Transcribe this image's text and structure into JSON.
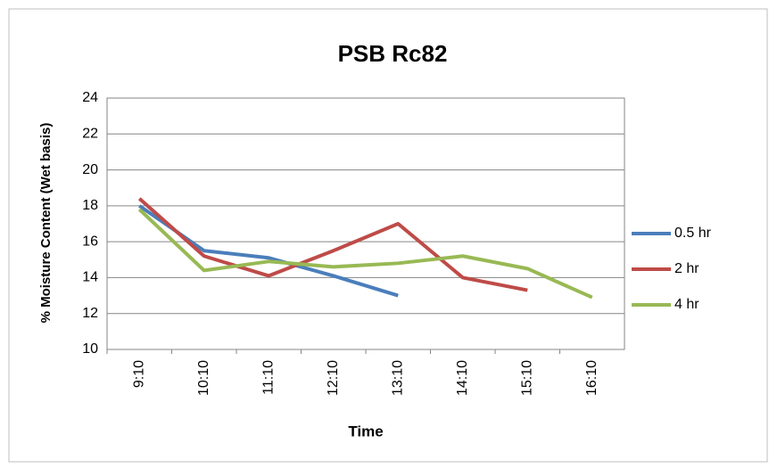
{
  "chart_data": {
    "type": "line",
    "title": "PSB Rc82",
    "y_label": "% Moisture Content (Wet basis)",
    "x_label": "Time",
    "categories": [
      "9:10",
      "10:10",
      "11:10",
      "12:10",
      "13:10",
      "14:10",
      "15:10",
      "16:10"
    ],
    "series": [
      {
        "name": "0.5 hr",
        "color": "#4a7ebb",
        "values": [
          18.0,
          15.5,
          15.1,
          14.1,
          13.0,
          null,
          null,
          null
        ]
      },
      {
        "name": "2 hr",
        "color": "#be4b48",
        "values": [
          18.4,
          15.2,
          14.1,
          15.5,
          17.0,
          14.0,
          13.3,
          null
        ]
      },
      {
        "name": "4 hr",
        "color": "#98b954",
        "values": [
          17.8,
          14.4,
          14.9,
          14.6,
          14.8,
          15.2,
          14.5,
          12.9
        ]
      }
    ],
    "ylim": [
      10,
      24
    ],
    "yticks": [
      10,
      12,
      14,
      16,
      18,
      20,
      22,
      24
    ],
    "grid": true,
    "legend": "right"
  }
}
